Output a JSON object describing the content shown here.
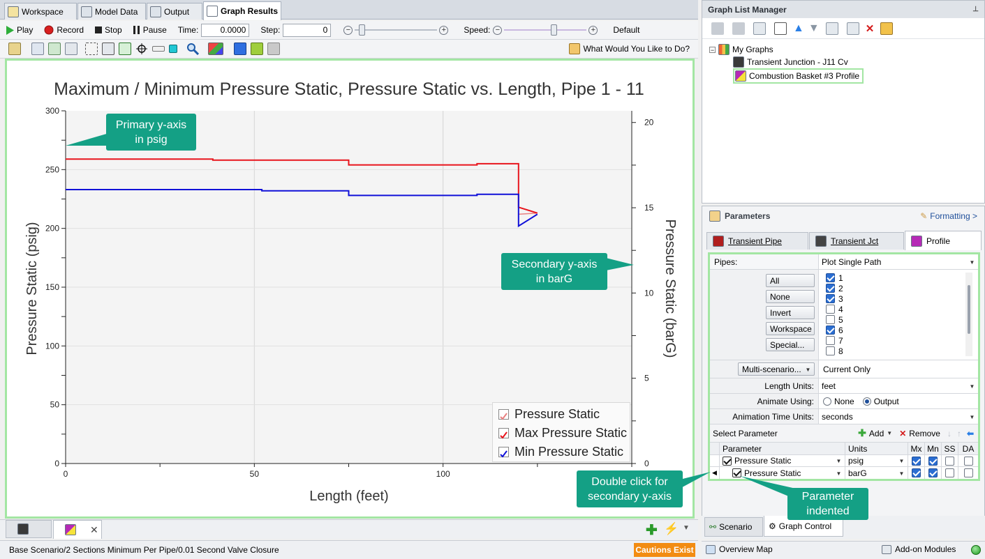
{
  "tabs": [
    {
      "label": "Workspace"
    },
    {
      "label": "Model Data"
    },
    {
      "label": "Output"
    },
    {
      "label": "Graph Results"
    }
  ],
  "toolbar": {
    "play_label": "Play",
    "record_label": "Record",
    "stop_label": "Stop",
    "pause_label": "Pause",
    "time_label": "Time:",
    "time_value": "0.0000",
    "step_label": "Step:",
    "step_value": "0",
    "speed_label": "Speed:",
    "default_label": "Default",
    "what_would_label": "What Would You Like to Do?"
  },
  "colors": {
    "max_series": "#e8141c",
    "min_series": "#1010d8",
    "pressure_series": "#e88080",
    "callout": "#14a085",
    "highlight_border": "#a3e6a3",
    "cautions": "#f28c12"
  },
  "chart_data": {
    "type": "line",
    "title": "Maximum / Minimum Pressure Static, Pressure Static vs. Length, Pipe 1 - 11",
    "xlabel": "Length (feet)",
    "ylabel": "Pressure Static (psig)",
    "y2label": "Pressure Static (barG)",
    "xlim": [
      0,
      150
    ],
    "ylim": [
      0,
      300
    ],
    "y2lim": [
      0,
      20.684
    ],
    "x_ticks": [
      "0",
      "50",
      "100"
    ],
    "y_ticks": [
      "0",
      "50",
      "100",
      "150",
      "200",
      "250",
      "300"
    ],
    "y2_ticks": [
      "0",
      "5",
      "10",
      "15",
      "20"
    ],
    "legend_position": "bottom-right",
    "grid": true,
    "series": [
      {
        "name": "Pressure Static",
        "points": [
          [
            120,
            212
          ],
          [
            125,
            213
          ]
        ]
      },
      {
        "name": "Max Pressure Static",
        "points": [
          [
            0,
            259
          ],
          [
            39,
            259
          ],
          [
            39,
            258
          ],
          [
            75,
            258
          ],
          [
            75,
            254
          ],
          [
            109,
            254
          ],
          [
            109,
            255
          ],
          [
            120,
            255
          ],
          [
            120,
            218
          ],
          [
            125,
            213
          ]
        ]
      },
      {
        "name": "Min Pressure Static",
        "points": [
          [
            0,
            233
          ],
          [
            52,
            233
          ],
          [
            52,
            232
          ],
          [
            75,
            232
          ],
          [
            75,
            228
          ],
          [
            109,
            228
          ],
          [
            109,
            229
          ],
          [
            120,
            229
          ],
          [
            120,
            202
          ],
          [
            125,
            212
          ]
        ]
      }
    ]
  },
  "callouts": {
    "primary": "Primary y-axis\nin psig",
    "secondary": "Secondary y-axis\nin barG",
    "double_click": "Double click for\nsecondary y-axis",
    "indented": "Parameter\nindented"
  },
  "status": {
    "scenario": "Base Scenario/2 Sections Minimum Per Pipe/0.01 Second Valve Closure",
    "cautions": "Cautions Exist"
  },
  "glm": {
    "title": "Graph List Manager",
    "root": "My Graphs",
    "items": [
      "Transient Junction - J11 Cv",
      "Combustion Basket #3 Profile"
    ]
  },
  "params": {
    "title": "Parameters",
    "formatting": "Formatting >",
    "tabs": [
      "Transient Pipe",
      "Transient Jct",
      "Profile"
    ],
    "pipes_label": "Pipes:",
    "pipes_value": "Plot Single Path",
    "buttons": [
      "All",
      "None",
      "Invert",
      "Workspace",
      "Special..."
    ],
    "pipe_list": [
      {
        "n": "1",
        "on": true
      },
      {
        "n": "2",
        "on": true
      },
      {
        "n": "3",
        "on": true
      },
      {
        "n": "4",
        "on": false
      },
      {
        "n": "5",
        "on": false
      },
      {
        "n": "6",
        "on": true
      },
      {
        "n": "7",
        "on": false
      },
      {
        "n": "8",
        "on": false
      }
    ],
    "multi_scenario": "Multi-scenario...",
    "multi_value": "Current Only",
    "length_units_label": "Length Units:",
    "length_units": "feet",
    "animate_label": "Animate Using:",
    "animate_none": "None",
    "animate_output": "Output",
    "anim_time_label": "Animation Time Units:",
    "anim_time": "seconds",
    "select_param": "Select Parameter",
    "add": "Add",
    "remove": "Remove",
    "headers": [
      "Parameter",
      "Units",
      "Mx",
      "Mn",
      "SS",
      "DA"
    ],
    "rows": [
      {
        "param": "Pressure Static",
        "units": "psig"
      },
      {
        "param": "Pressure Static",
        "units": "barG"
      }
    ]
  },
  "bottom": {
    "scenario_tab": "Scenario",
    "graph_control_tab": "Graph Control",
    "overview_map": "Overview Map",
    "addon": "Add-on Modules"
  }
}
